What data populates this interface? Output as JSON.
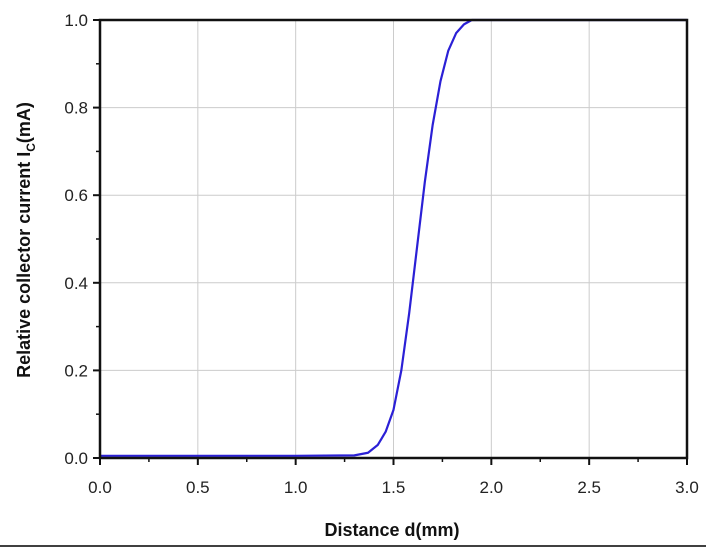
{
  "chart_data": {
    "type": "line",
    "xlabel": "Distance d(mm)",
    "ylabel": {
      "main": "Relative collector current I",
      "sub": "C",
      "suffix": "(mA)"
    },
    "xlim": [
      0.0,
      3.0
    ],
    "ylim": [
      0.0,
      1.0
    ],
    "x_ticks": [
      "0.0",
      "0.5",
      "1.0",
      "1.5",
      "2.0",
      "2.5",
      "3.0"
    ],
    "y_ticks": [
      "0.0",
      "0.2",
      "0.4",
      "0.6",
      "0.8",
      "1.0"
    ],
    "grid": true,
    "colors": {
      "line": "#2b20d6",
      "grid": "#cccccc",
      "axis": "#111111"
    },
    "series": [
      {
        "x": [
          0.0,
          0.5,
          1.0,
          1.3,
          1.37,
          1.42,
          1.46,
          1.5,
          1.54,
          1.58,
          1.62,
          1.66,
          1.7,
          1.74,
          1.78,
          1.82,
          1.86,
          1.9,
          1.95,
          2.0,
          2.5,
          3.0
        ],
        "y": [
          0.005,
          0.005,
          0.005,
          0.006,
          0.012,
          0.03,
          0.06,
          0.11,
          0.2,
          0.33,
          0.48,
          0.63,
          0.76,
          0.86,
          0.93,
          0.97,
          0.99,
          1.0,
          1.0,
          1.0,
          1.0,
          1.0
        ]
      }
    ]
  }
}
